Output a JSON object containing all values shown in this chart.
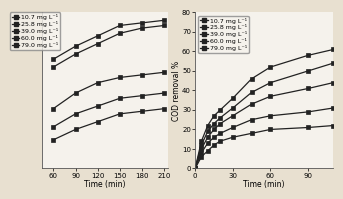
{
  "left": {
    "xlabel": "Time (min)",
    "ylabel": "",
    "xlim": [
      45,
      215
    ],
    "ylim": [
      15,
      75
    ],
    "xticks": [
      60,
      90,
      120,
      150,
      180,
      210
    ],
    "yticks": [],
    "time": [
      60,
      90,
      120,
      150,
      180,
      210
    ],
    "series": [
      {
        "label": "10.7 mg L⁻¹",
        "values": [
          57,
          62,
          66,
          70,
          71,
          72
        ]
      },
      {
        "label": "25.8 mg L⁻¹",
        "values": [
          54,
          59,
          63,
          67,
          69,
          70
        ]
      },
      {
        "label": "39.0 mg L⁻¹",
        "values": [
          38,
          44,
          48,
          50,
          51,
          52
        ]
      },
      {
        "label": "60.0 mg L⁻¹",
        "values": [
          31,
          36,
          39,
          42,
          43,
          44
        ]
      },
      {
        "label": "79.0 mg L⁻¹",
        "values": [
          26,
          30,
          33,
          36,
          37,
          38
        ]
      }
    ]
  },
  "right": {
    "xlabel": "Time (min)",
    "ylabel": "COD removal %",
    "xlim": [
      0,
      110
    ],
    "ylim": [
      0,
      80
    ],
    "xticks": [
      0,
      30,
      60,
      90
    ],
    "yticks": [
      0,
      10,
      20,
      30,
      40,
      50,
      60,
      70,
      80
    ],
    "time": [
      0,
      5,
      10,
      15,
      20,
      30,
      45,
      60,
      90,
      110
    ],
    "series": [
      {
        "label": "10.7 mg L⁻¹",
        "values": [
          0,
          14,
          22,
          27,
          30,
          36,
          46,
          52,
          58,
          61
        ]
      },
      {
        "label": "25.8 mg L⁻¹",
        "values": [
          0,
          12,
          19,
          23,
          26,
          31,
          39,
          44,
          50,
          54
        ]
      },
      {
        "label": "39.0 mg L⁻¹",
        "values": [
          0,
          10,
          16,
          20,
          23,
          27,
          33,
          37,
          41,
          44
        ]
      },
      {
        "label": "60.0 mg L⁻¹",
        "values": [
          0,
          8,
          13,
          16,
          18,
          21,
          25,
          27,
          29,
          31
        ]
      },
      {
        "label": "79.0 mg L⁻¹",
        "values": [
          0,
          6,
          9,
          12,
          14,
          16,
          18,
          20,
          21,
          22
        ]
      }
    ],
    "legend_labels": [
      "10.7 mg L⁻¹",
      "25.8 mg L⁻¹",
      "39.0 mg L⁻¹",
      "60.0 mg L⁻¹",
      "79.0 mg L⁻¹"
    ]
  },
  "left_legend_labels": [
    "10.7 mg L⁻¹",
    "25.8 mg L⁻¹",
    "39.0 mg L⁻¹",
    "60.0 mg L⁻¹",
    "79.0 mg L⁻¹"
  ],
  "line_color": "#222222",
  "marker": "s",
  "markersize": 2.5,
  "linewidth": 0.9,
  "fontsize": 5.5,
  "tick_fontsize": 5,
  "legend_fontsize": 4.5,
  "bg_color": "#e8e0d0",
  "plot_bg": "#f5f2ec"
}
